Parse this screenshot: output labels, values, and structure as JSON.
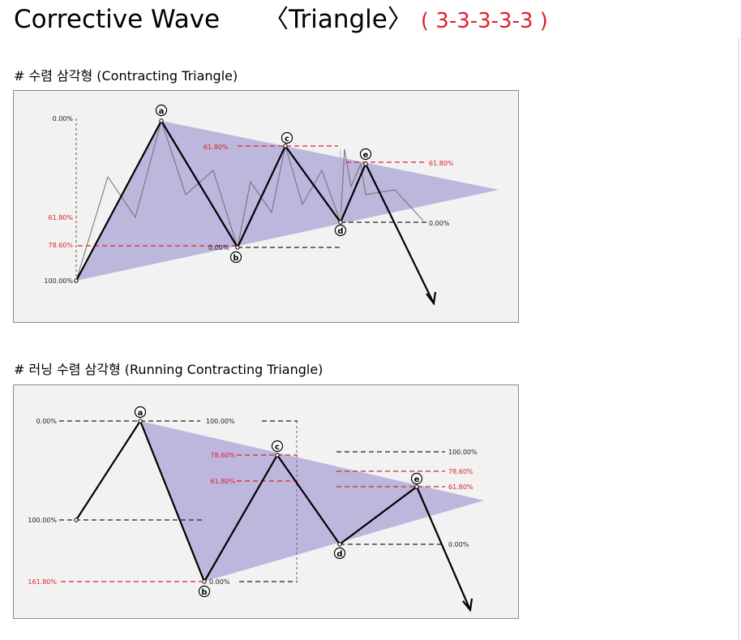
{
  "title": {
    "main": "Corrective Wave",
    "triangle": "〈Triangle〉",
    "pattern": "( 3-3-3-3-3 )"
  },
  "colors": {
    "accent_red": "#e0202a",
    "triangle_fill": "#bdb6dd",
    "panel_bg": "#f2f2f2"
  },
  "sections": [
    {
      "heading": "# 수렴 삼각형 (Contracting Triangle)",
      "wave_labels": [
        "a",
        "b",
        "c",
        "d",
        "e"
      ],
      "levels": {
        "l0": "0.00%",
        "l618": "61.80%",
        "l786": "78.60%",
        "l100": "100.00%",
        "b_level": "0.00%",
        "c_level": "61.80%",
        "e_level": "61.80%",
        "d_level": "0.00%"
      }
    },
    {
      "heading": "# 러닝 수렴 삼각형 (Running Contracting Triangle)",
      "wave_labels": [
        "a",
        "b",
        "c",
        "d",
        "e"
      ],
      "levels": {
        "l0": "0.00%",
        "l100": "100.00%",
        "l1618": "161.80%",
        "a_level": "100.00%",
        "b_level": "0.00%",
        "c786": "78.60%",
        "c618": "61.80%",
        "d100": "100.00%",
        "d786": "78.60%",
        "d618": "61.80%",
        "d0": "0.00%"
      }
    }
  ]
}
